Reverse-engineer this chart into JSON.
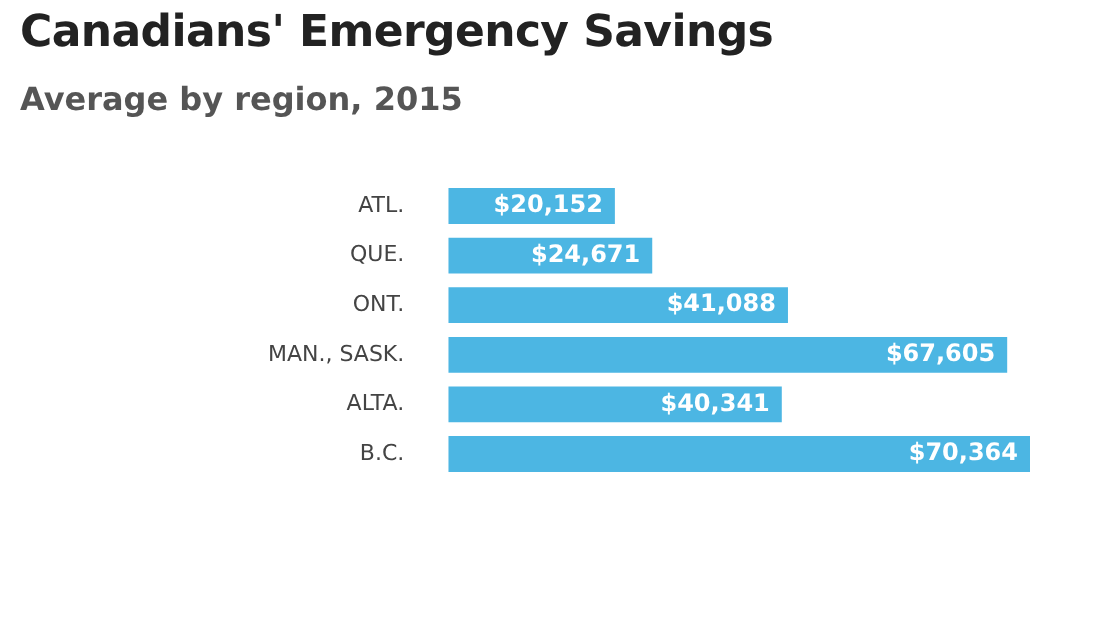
{
  "chart_data": {
    "type": "bar",
    "orientation": "horizontal",
    "title": "Canadians' Emergency Savings",
    "subtitle": "Average by region, 2015",
    "categories": [
      "ATL.",
      "QUE.",
      "ONT.",
      "MAN., SASK.",
      "ALTA.",
      "B.C."
    ],
    "values": [
      20152,
      24671,
      41088,
      67605,
      40341,
      70364
    ],
    "value_labels": [
      "$20,152",
      "$24,671",
      "$41,088",
      "$67,605",
      "$40,341",
      "$70,364"
    ],
    "color": "#4cb6e3"
  }
}
